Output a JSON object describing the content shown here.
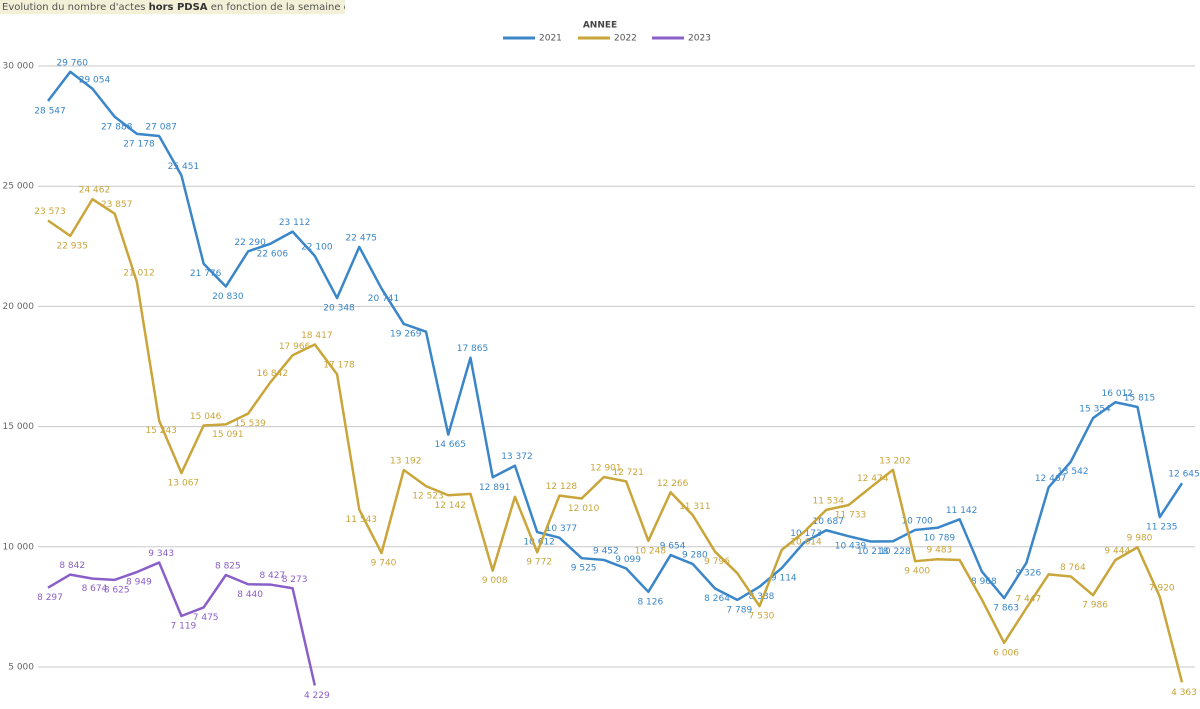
{
  "chart_data": {
    "type": "line",
    "title_parts": [
      "Evolution du nombre d'actes ",
      "hors PDSA",
      " en fonction de la semaine et l'année"
    ],
    "legend_title": "ANNEE",
    "categories": [
      null,
      null,
      null,
      null,
      null,
      null,
      null,
      null,
      null,
      null,
      null,
      null,
      null,
      null,
      null,
      null,
      null,
      null,
      null,
      null,
      null,
      null,
      null,
      null,
      null,
      null,
      null,
      null,
      null,
      null,
      null,
      null,
      null,
      null,
      null,
      null,
      null,
      null,
      null,
      null,
      null,
      null,
      null,
      null,
      null,
      null,
      null,
      null,
      null,
      null,
      null,
      null
    ],
    "ylim": [
      3600,
      31000
    ],
    "yticks": [
      {
        "value": 5000,
        "label": "5 000"
      },
      {
        "value": 10000,
        "label": "10 000"
      },
      {
        "value": 15000,
        "label": "15 000"
      },
      {
        "value": 20000,
        "label": "20 000"
      },
      {
        "value": 25000,
        "label": "25 000"
      },
      {
        "value": 30000,
        "label": "30 000"
      }
    ],
    "grid": true,
    "legend": "top",
    "series": [
      {
        "name": "2021",
        "color": "#3a86c8",
        "values": [
          28547,
          29760,
          29054,
          27888,
          27178,
          27087,
          25451,
          21776,
          20830,
          22290,
          22606,
          23112,
          22100,
          20348,
          22475,
          20741,
          19269,
          18950,
          14665,
          17865,
          12891,
          13372,
          10612,
          10377,
          9525,
          9452,
          9099,
          8126,
          9654,
          9280,
          8264,
          7789,
          8338,
          9114,
          10173,
          10687,
          10439,
          10218,
          10228,
          10700,
          10789,
          11142,
          8968,
          7863,
          9326,
          12467,
          13542,
          15354,
          16012,
          15815,
          11235,
          12645
        ],
        "value_labels": [
          "28 547",
          "29 760",
          "29 054",
          "27 888",
          "27 178",
          "27 087",
          "25 451",
          "21 776",
          "20 830",
          "22 290",
          "22 606",
          "23 112",
          "22 100",
          "20 348",
          "22 475",
          "20 741",
          "19 269",
          null,
          "14 665",
          "17 865",
          "12 891",
          "13 372",
          "10 612",
          "10 377",
          "9 525",
          "9 452",
          "9 099",
          "8 126",
          "9 654",
          "9 280",
          "8 264",
          "7 789",
          "8 338",
          "9 114",
          "10 173",
          "10 687",
          "10 439",
          "10 218",
          "10 228",
          "10 700",
          "10 789",
          "11 142",
          "8 968",
          "7 863",
          "9 326",
          "12 467",
          "13 542",
          "15 354",
          "16 012",
          "15 815",
          "11 235",
          "12 645"
        ]
      },
      {
        "name": "2022",
        "color": "#c9a53a",
        "values": [
          23573,
          22935,
          24462,
          23857,
          21012,
          15243,
          13067,
          15046,
          15091,
          15539,
          16842,
          17966,
          18417,
          17178,
          11543,
          9740,
          13192,
          12523,
          12142,
          12200,
          9008,
          12080,
          9772,
          12128,
          12010,
          12901,
          12721,
          10248,
          12266,
          11311,
          9796,
          8900,
          7530,
          9870,
          10614,
          11534,
          11733,
          12474,
          13202,
          9400,
          9483,
          9450,
          7800,
          6006,
          7447,
          8850,
          8764,
          7986,
          9444,
          9980,
          7920,
          4363
        ],
        "value_labels": [
          "23 573",
          "22 935",
          "24 462",
          "23 857",
          "21 012",
          "15 243",
          "13 067",
          "15 046",
          "15 091",
          "15 539",
          "16 842",
          "17 966",
          "18 417",
          "17 178",
          "11 543",
          "9 740",
          "13 192",
          "12 523",
          "12 142",
          null,
          "9 008",
          null,
          "9 772",
          "12 128",
          "12 010",
          "12 901",
          "12 721",
          "10 248",
          "12 266",
          "11 311",
          "9 796",
          null,
          "7 530",
          null,
          "10 614",
          "11 534",
          "11 733",
          "12 474",
          "13 202",
          "9 400",
          "9 483",
          null,
          null,
          "6 006",
          "7 447",
          null,
          "8 764",
          "7 986",
          "9 444",
          "9 980",
          "7 920",
          "4 363"
        ]
      },
      {
        "name": "2023",
        "color": "#8a5fc9",
        "values": [
          8297,
          8842,
          8674,
          8625,
          8949,
          9343,
          7119,
          7475,
          8825,
          8440,
          8427,
          8273,
          4229,
          null,
          null,
          null,
          null,
          null,
          null,
          null,
          null,
          null,
          null,
          null,
          null,
          null,
          null,
          null,
          null,
          null,
          null,
          null,
          null,
          null,
          null,
          null,
          null,
          null,
          null,
          null,
          null,
          null,
          null,
          null,
          null,
          null,
          null,
          null,
          null,
          null,
          null,
          null
        ],
        "value_labels": [
          "8 297",
          "8 842",
          "8 674",
          "8 625",
          "8 949",
          "9 343",
          "7 119",
          "7 475",
          "8 825",
          "8 440",
          "8 427",
          "8 273",
          "4 229",
          null,
          null,
          null,
          null,
          null,
          null,
          null,
          null,
          null,
          null,
          null,
          null,
          null,
          null,
          null,
          null,
          null,
          null,
          null,
          null,
          null,
          null,
          null,
          null,
          null,
          null,
          null,
          null,
          null,
          null,
          null,
          null,
          null,
          null,
          null,
          null,
          null,
          null,
          null
        ]
      }
    ]
  }
}
